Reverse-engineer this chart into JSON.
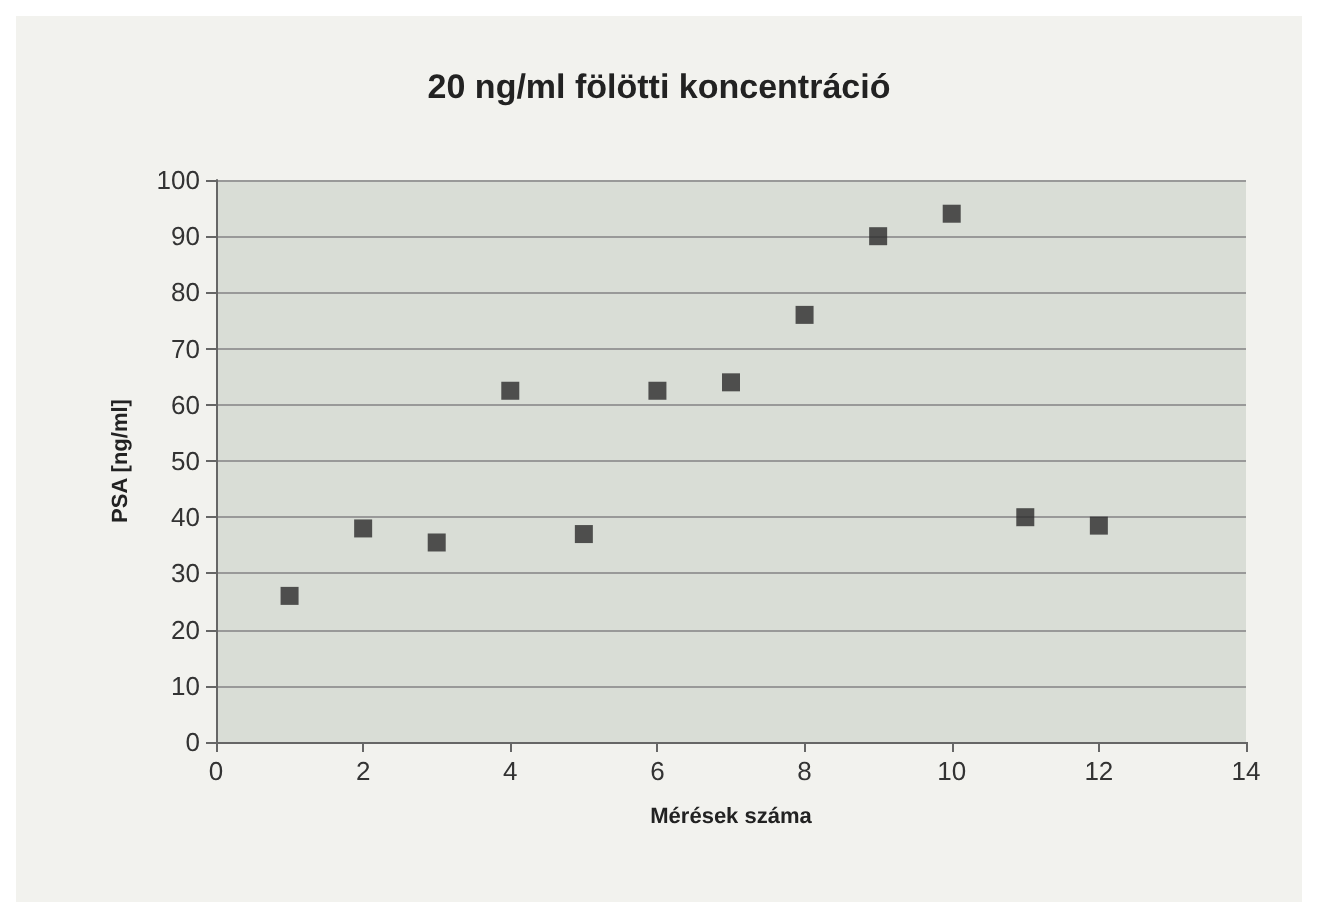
{
  "chart_data": {
    "type": "scatter",
    "title": "20 ng/ml fölötti koncentráció",
    "xlabel": "Mérések száma",
    "ylabel": "PSA [ng/ml]",
    "x": [
      1,
      2,
      3,
      4,
      5,
      6,
      7,
      8,
      9,
      10,
      11,
      12
    ],
    "series": [
      {
        "color": "#2b2b2b",
        "values": [
          26,
          38,
          35.5,
          62.5,
          37,
          62.5,
          64,
          76,
          90,
          94,
          40,
          38.5
        ]
      }
    ],
    "xlim": [
      0,
      14
    ],
    "xticks": [
      0,
      2,
      4,
      6,
      8,
      10,
      12,
      14
    ],
    "ylim": [
      0,
      100
    ],
    "yticks": [
      0,
      10,
      20,
      30,
      40,
      50,
      60,
      70,
      80,
      90,
      100
    ],
    "grid": "y",
    "marker": "square"
  }
}
